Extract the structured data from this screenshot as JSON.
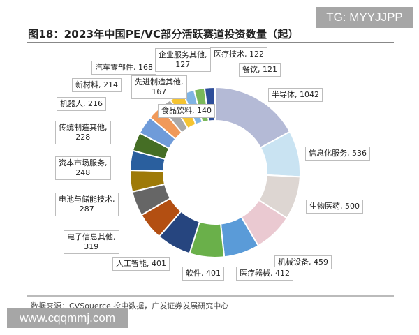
{
  "title": "图18：2023年中国PE/VC部分活跃赛道投资数量（起）",
  "source": "数据来源：CVSouerce 投中数据，广发证券发展研究中心",
  "watermarks": {
    "tg": "TG: MYYJJPP",
    "url": "www.cqqmmj.com"
  },
  "chart_data": {
    "type": "pie",
    "donut": true,
    "title": "2023年中国PE/VC部分活跃赛道投资数量（起）",
    "unit": "起",
    "legend": "none (leader-line data labels)",
    "categories": [
      "半导体",
      "信息化服务",
      "生物医药",
      "机械设备",
      "医疗器械",
      "软件",
      "人工智能",
      "电子信息其他",
      "电池与储能技术",
      "资本市场服务",
      "传统制造其他",
      "机器人",
      "新材料",
      "汽车零部件",
      "食品饮料",
      "先进制造其他",
      "企业服务其他",
      "医疗技术",
      "餐饮"
    ],
    "values": [
      1042,
      536,
      500,
      459,
      412,
      401,
      401,
      319,
      287,
      248,
      228,
      216,
      214,
      168,
      140,
      167,
      127,
      122,
      121
    ],
    "colors": [
      "#b4bad6",
      "#c9e3f2",
      "#ddd6d2",
      "#eac9d1",
      "#5a9bd8",
      "#6ab04a",
      "#26457f",
      "#b34f12",
      "#666666",
      "#9e7a08",
      "#2a5f9e",
      "#456e25",
      "#6f9bd9",
      "#f0995a",
      "#a8a8a8",
      "#f5c431",
      "#80b4e4",
      "#7ab85a",
      "#2e4e9a"
    ]
  },
  "labels": [
    {
      "text": "半导体, 1042"
    },
    {
      "text": "信息化服务, 536"
    },
    {
      "text": "生物医药, 500"
    },
    {
      "text": "机械设备, 459"
    },
    {
      "text": "医疗器械, 412"
    },
    {
      "text": "软件, 401"
    },
    {
      "text": "人工智能, 401"
    },
    {
      "line1": "电子信息其他,",
      "line2": "319"
    },
    {
      "line1": "电池与储能技术,",
      "line2": "287"
    },
    {
      "line1": "资本市场服务,",
      "line2": "248"
    },
    {
      "line1": "传统制造其他,",
      "line2": "228"
    },
    {
      "text": "机器人, 216"
    },
    {
      "text": "新材料, 214"
    },
    {
      "text": "汽车零部件, 168"
    },
    {
      "text": "食品饮料, 140"
    },
    {
      "line1": "先进制造其他,",
      "line2": "167"
    },
    {
      "line1": "企业服务其他,",
      "line2": "127"
    },
    {
      "text": "医疗技术, 122"
    },
    {
      "text": "餐饮, 121"
    }
  ]
}
